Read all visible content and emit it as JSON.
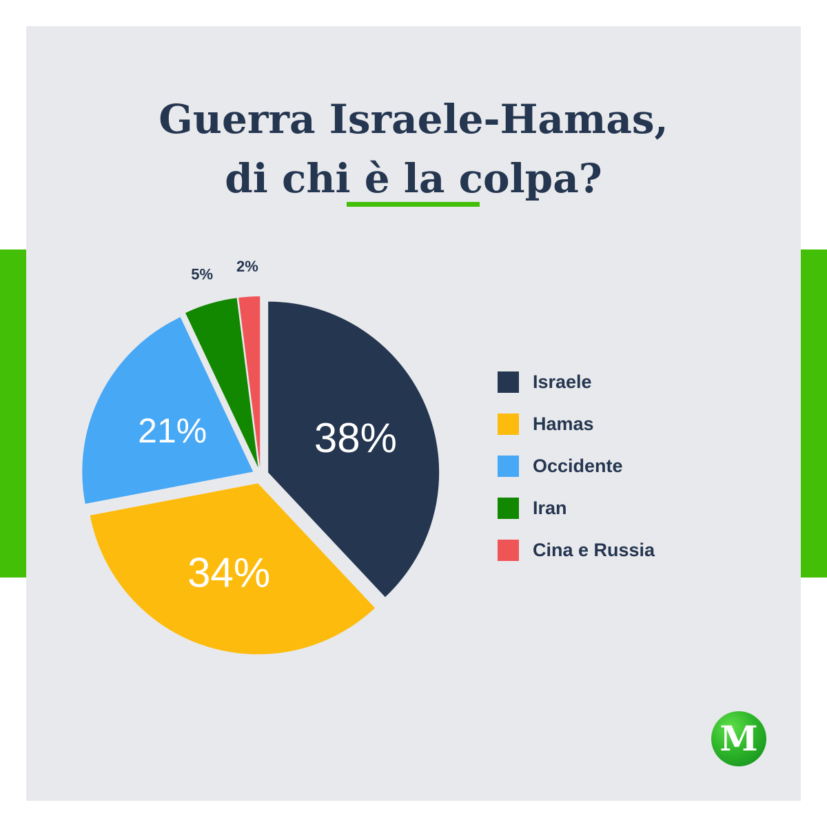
{
  "colors": {
    "accent_green": "#44bf08",
    "background_card": "#e8e9ec",
    "text_dark": "#253650"
  },
  "title": {
    "line1": "Guerra Israele-Hamas,",
    "line2": "di chi è la colpa?"
  },
  "logo": {
    "letter": "M",
    "icon": "m-logo-icon"
  },
  "chart_data": {
    "type": "pie",
    "title": "Guerra Israele-Hamas, di chi è la colpa?",
    "start_angle_deg": 0,
    "exploded": true,
    "legend_position": "right",
    "slices": [
      {
        "label": "Israele",
        "value": 38,
        "display": "38%",
        "color": "#253650",
        "label_style": "inside-large"
      },
      {
        "label": "Hamas",
        "value": 34,
        "display": "34%",
        "color": "#fdbb0e",
        "label_style": "inside-large"
      },
      {
        "label": "Occidente",
        "value": 21,
        "display": "21%",
        "color": "#47a8f5",
        "label_style": "inside-medium"
      },
      {
        "label": "Iran",
        "value": 5,
        "display": "5%",
        "color": "#128700",
        "label_style": "outside"
      },
      {
        "label": "Cina e Russia",
        "value": 2,
        "display": "2%",
        "color": "#ef5557",
        "label_style": "outside"
      }
    ]
  }
}
